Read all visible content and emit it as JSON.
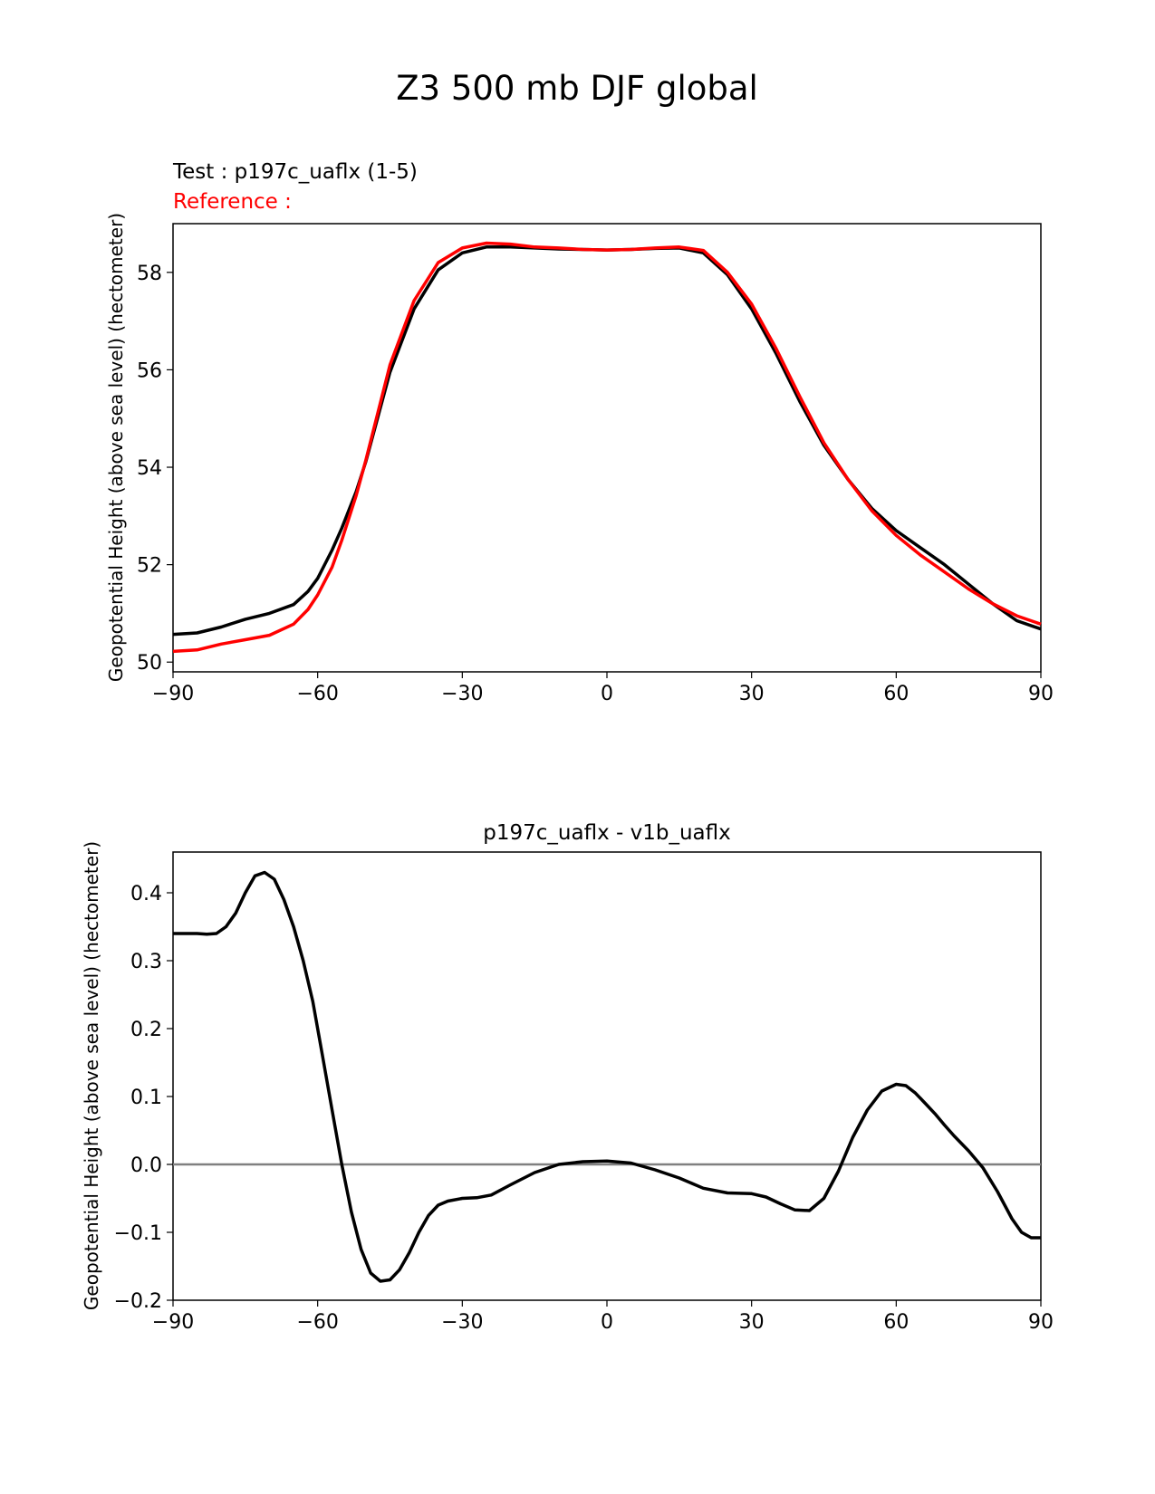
{
  "figure": {
    "title": "Z3 500 mb DJF global"
  },
  "chart_data": [
    {
      "type": "line",
      "test_label": "Test : p197c_uaflx (1-5)",
      "reference_label": "Reference :",
      "title": "",
      "xlabel": "",
      "ylabel": "Geopotential Height (above sea level) (hectometer)",
      "xlim": [
        -90,
        90
      ],
      "ylim": [
        49.8,
        59.0
      ],
      "xticks": [
        -90,
        -60,
        -30,
        0,
        30,
        60,
        90
      ],
      "xtick_labels": [
        "−90",
        "−60",
        "−30",
        "0",
        "30",
        "60",
        "90"
      ],
      "yticks": [
        50,
        52,
        54,
        56,
        58
      ],
      "ytick_labels": [
        "50",
        "52",
        "54",
        "56",
        "58"
      ],
      "grid": false,
      "series": [
        {
          "color": "#000000",
          "x": [
            -90,
            -85,
            -80,
            -75,
            -70,
            -65,
            -62,
            -60,
            -57,
            -55,
            -52,
            -50,
            -45,
            -40,
            -35,
            -30,
            -25,
            -20,
            -15,
            -10,
            -5,
            0,
            5,
            10,
            15,
            20,
            25,
            30,
            35,
            40,
            45,
            50,
            55,
            60,
            65,
            70,
            75,
            80,
            85,
            90
          ],
          "y": [
            50.57,
            50.6,
            50.72,
            50.88,
            51.0,
            51.18,
            51.45,
            51.72,
            52.3,
            52.75,
            53.5,
            54.12,
            55.95,
            57.25,
            58.05,
            58.4,
            58.52,
            58.52,
            58.5,
            58.48,
            58.47,
            58.46,
            58.47,
            58.49,
            58.5,
            58.4,
            57.95,
            57.25,
            56.35,
            55.35,
            54.45,
            53.75,
            53.15,
            52.7,
            52.35,
            52.0,
            51.6,
            51.2,
            50.85,
            50.68
          ]
        },
        {
          "color": "#ff0000",
          "x": [
            -90,
            -85,
            -80,
            -75,
            -70,
            -65,
            -62,
            -60,
            -57,
            -55,
            -52,
            -50,
            -45,
            -40,
            -35,
            -30,
            -25,
            -20,
            -15,
            -10,
            -5,
            0,
            5,
            10,
            15,
            20,
            25,
            30,
            35,
            40,
            45,
            50,
            55,
            60,
            65,
            70,
            75,
            80,
            85,
            90
          ],
          "y": [
            50.22,
            50.25,
            50.37,
            50.46,
            50.55,
            50.78,
            51.08,
            51.38,
            51.95,
            52.5,
            53.42,
            54.15,
            56.1,
            57.42,
            58.2,
            58.5,
            58.6,
            58.58,
            58.52,
            58.5,
            58.47,
            58.46,
            58.47,
            58.5,
            58.52,
            58.45,
            58.0,
            57.35,
            56.45,
            55.45,
            54.5,
            53.75,
            53.1,
            52.6,
            52.2,
            51.85,
            51.5,
            51.2,
            50.95,
            50.78
          ]
        }
      ]
    },
    {
      "type": "line",
      "title": "p197c_uaflx - v1b_uaflx",
      "xlabel": "",
      "ylabel": "Geopotential Height (above sea level) (hectometer)",
      "xlim": [
        -90,
        90
      ],
      "ylim": [
        -0.2,
        0.46
      ],
      "xticks": [
        -90,
        -60,
        -30,
        0,
        30,
        60,
        90
      ],
      "xtick_labels": [
        "−90",
        "−60",
        "−30",
        "0",
        "30",
        "60",
        "90"
      ],
      "yticks": [
        -0.2,
        -0.1,
        0.0,
        0.1,
        0.2,
        0.3,
        0.4
      ],
      "ytick_labels": [
        "−0.2",
        "−0.1",
        "0.0",
        "0.1",
        "0.2",
        "0.3",
        "0.4"
      ],
      "grid": false,
      "zero_line_color": "#808080",
      "series": [
        {
          "color": "#000000",
          "x": [
            -90,
            -87,
            -85,
            -83,
            -81,
            -79,
            -77,
            -75,
            -73,
            -71,
            -69,
            -67,
            -65,
            -63,
            -61,
            -59,
            -57,
            -55,
            -53,
            -51,
            -49,
            -47,
            -45,
            -43,
            -41,
            -39,
            -37,
            -35,
            -33,
            -30,
            -27,
            -24,
            -20,
            -15,
            -10,
            -5,
            0,
            5,
            10,
            15,
            20,
            25,
            30,
            33,
            36,
            39,
            42,
            45,
            48,
            51,
            54,
            57,
            60,
            62,
            64,
            66,
            68,
            70,
            72,
            75,
            78,
            81,
            84,
            86,
            88,
            90
          ],
          "y": [
            0.34,
            0.34,
            0.34,
            0.339,
            0.34,
            0.35,
            0.37,
            0.4,
            0.425,
            0.43,
            0.42,
            0.39,
            0.35,
            0.3,
            0.24,
            0.16,
            0.08,
            0.0,
            -0.07,
            -0.125,
            -0.16,
            -0.172,
            -0.17,
            -0.155,
            -0.13,
            -0.1,
            -0.075,
            -0.06,
            -0.054,
            -0.05,
            -0.049,
            -0.045,
            -0.03,
            -0.012,
            0.0,
            0.004,
            0.005,
            0.002,
            -0.008,
            -0.02,
            -0.035,
            -0.042,
            -0.043,
            -0.048,
            -0.058,
            -0.067,
            -0.068,
            -0.05,
            -0.01,
            0.04,
            0.08,
            0.108,
            0.118,
            0.116,
            0.105,
            0.09,
            0.075,
            0.058,
            0.042,
            0.02,
            -0.005,
            -0.04,
            -0.08,
            -0.1,
            -0.108,
            -0.108
          ]
        }
      ]
    }
  ]
}
